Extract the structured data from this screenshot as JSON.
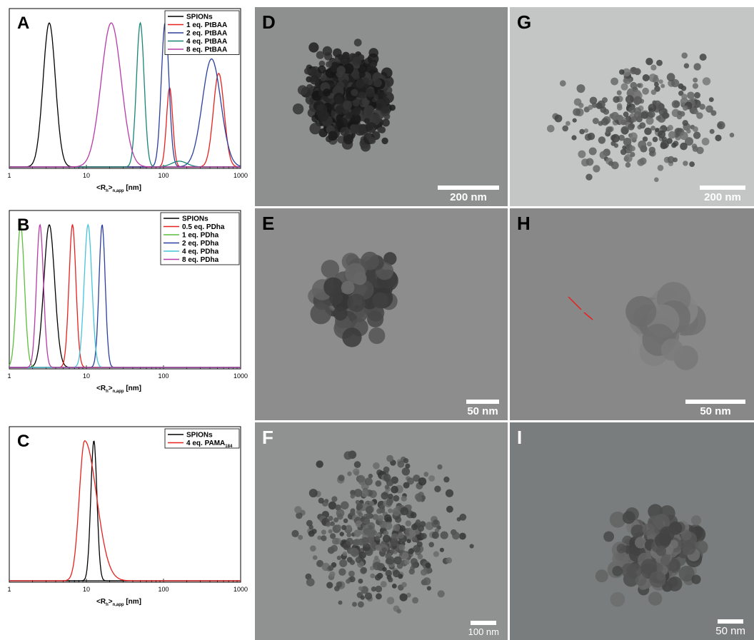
{
  "chart_data": [
    {
      "type": "line",
      "panel_label": "A",
      "xscale": "log",
      "xlim": [
        1,
        1000
      ],
      "ylim": [
        0,
        1.05
      ],
      "x_ticks": [
        "1",
        "10",
        "100",
        "1000"
      ],
      "xlabel": {
        "open": "<R",
        "sub1": "h",
        "mid": ">",
        "sub2": "n,app",
        "unit": " [nm]"
      },
      "legend_position": "top-right",
      "series": [
        {
          "name": "SPIONs",
          "color": "#000000",
          "peaks": [
            {
              "x": 3.3,
              "y": 1.0,
              "w": 0.08
            }
          ]
        },
        {
          "name": "1 eq. PtBAA",
          "color": "#e8211f",
          "peaks": [
            {
              "x": 120,
              "y": 0.55,
              "w": 0.04
            },
            {
              "x": 520,
              "y": 0.65,
              "w": 0.07
            }
          ]
        },
        {
          "name": "2 eq. PtBAA",
          "color": "#2b3f9e",
          "peaks": [
            {
              "x": 105,
              "y": 1.0,
              "w": 0.05
            },
            {
              "x": 420,
              "y": 0.75,
              "w": 0.12
            }
          ]
        },
        {
          "name": "4 eq. PtBAA",
          "color": "#188577",
          "peaks": [
            {
              "x": 50,
              "y": 1.0,
              "w": 0.05
            },
            {
              "x": 160,
              "y": 0.04,
              "w": 0.1
            }
          ]
        },
        {
          "name": "8 eq. PtBAA",
          "color": "#b63ba8",
          "peaks": [
            {
              "x": 21,
              "y": 1.0,
              "w": 0.13
            }
          ]
        }
      ]
    },
    {
      "type": "line",
      "panel_label": "B",
      "xscale": "log",
      "xlim": [
        1,
        1000
      ],
      "ylim": [
        0,
        1.05
      ],
      "x_ticks": [
        "1",
        "10",
        "100",
        "1000"
      ],
      "xlabel": {
        "open": "<R",
        "sub1": "h",
        "mid": ">",
        "sub2": "n,app",
        "unit": " [nm]"
      },
      "legend_position": "top-right",
      "series": [
        {
          "name": "SPIONs",
          "color": "#000000",
          "peaks": [
            {
              "x": 3.3,
              "y": 1.0,
              "w": 0.07
            }
          ]
        },
        {
          "name": "0.5 eq. PDha",
          "color": "#e8211f",
          "peaks": [
            {
              "x": 6.6,
              "y": 1.0,
              "w": 0.045
            }
          ]
        },
        {
          "name": "1 eq. PDha",
          "color": "#5cbf3a",
          "peaks": [
            {
              "x": 1.4,
              "y": 1.0,
              "w": 0.05
            }
          ]
        },
        {
          "name": "2 eq. PDha",
          "color": "#2b3f9e",
          "peaks": [
            {
              "x": 16,
              "y": 1.0,
              "w": 0.04
            }
          ]
        },
        {
          "name": "4 eq. PDha",
          "color": "#45c4dc",
          "peaks": [
            {
              "x": 10.5,
              "y": 1.0,
              "w": 0.05
            }
          ]
        },
        {
          "name": "8 eq. PDha",
          "color": "#b63ba8",
          "peaks": [
            {
              "x": 2.5,
              "y": 1.0,
              "w": 0.045
            }
          ]
        }
      ]
    },
    {
      "type": "line",
      "panel_label": "C",
      "xscale": "log",
      "xlim": [
        1,
        1000
      ],
      "ylim": [
        0,
        1.05
      ],
      "x_ticks": [
        "1",
        "10",
        "100",
        "1000"
      ],
      "xlabel": {
        "open": "<R",
        "sub1": "h",
        "mid": ">",
        "sub2": "n,app",
        "unit": " [nm]"
      },
      "legend_position": "top-right",
      "series": [
        {
          "name": "SPIONs",
          "color": "#000000",
          "peaks": [
            {
              "x": 12.5,
              "y": 1.0,
              "w": 0.04
            }
          ]
        },
        {
          "name": "4 eq. PAMA",
          "name_sub": "184",
          "color": "#e8211f",
          "peaks": [
            {
              "x": 9.5,
              "y": 1.0,
              "w": 0.07,
              "tail": true
            }
          ]
        }
      ]
    }
  ],
  "images": [
    {
      "label": "D",
      "scale_text": "200 nm",
      "background": "#8e8f8f"
    },
    {
      "label": "G",
      "scale_text": "200 nm",
      "background": "#c4c6c6"
    },
    {
      "label": "E",
      "scale_text": "50 nm",
      "background": "#8d8d8d"
    },
    {
      "label": "H",
      "scale_text": "50 nm",
      "background": "#888888"
    },
    {
      "label": "F",
      "scale_text": "100 nm",
      "background": "#909292"
    },
    {
      "label": "I",
      "scale_text": "50 nm",
      "background": "#7a7d7d"
    }
  ]
}
